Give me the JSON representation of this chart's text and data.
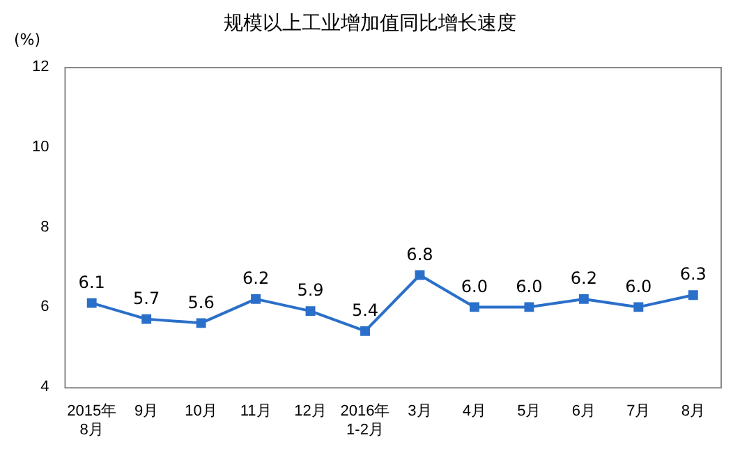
{
  "chart_data": {
    "type": "line",
    "title": "规模以上工业增加值同比增长速度",
    "ylabel": "(%)",
    "categories": [
      "2015年\n8月",
      "9月",
      "10月",
      "11月",
      "12月",
      "2016年\n1-2月",
      "3月",
      "4月",
      "5月",
      "6月",
      "7月",
      "8月"
    ],
    "values": [
      6.1,
      5.7,
      5.6,
      6.2,
      5.9,
      5.4,
      6.8,
      6.0,
      6.0,
      6.2,
      6.0,
      6.3
    ],
    "value_labels": [
      "6.1",
      "5.7",
      "5.6",
      "6.2",
      "5.9",
      "5.4",
      "6.8",
      "6.0",
      "6.0",
      "6.2",
      "6.0",
      "6.3"
    ],
    "color": "#2a6fc9",
    "marker": "square",
    "line_style": "solid",
    "ylim": [
      4,
      12
    ],
    "yticks": [
      4,
      6,
      8,
      10,
      12
    ],
    "grid": false,
    "legend": false
  }
}
